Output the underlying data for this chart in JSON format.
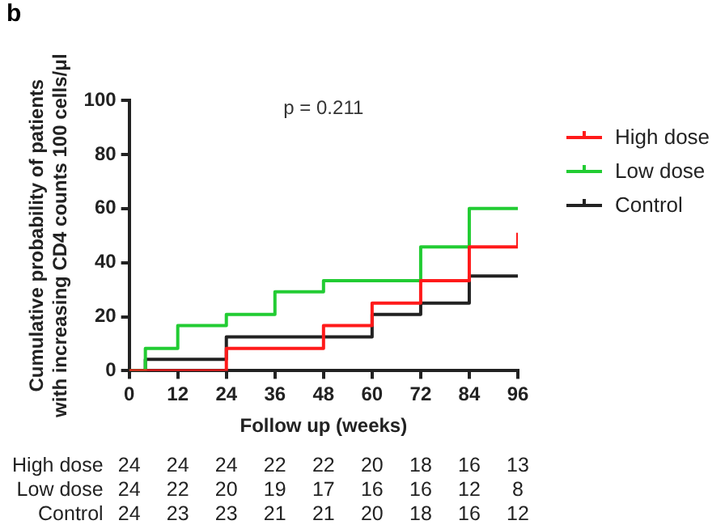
{
  "chart_data": {
    "type": "step",
    "title": "b",
    "xlabel": "Follow up (weeks)",
    "ylabel": "Cumulative probability of patients\nwith increasing CD4 counts 100 cells/μl",
    "xlim": [
      0,
      96
    ],
    "xticks": [
      0,
      12,
      24,
      36,
      48,
      60,
      72,
      84,
      96
    ],
    "ylim": [
      0,
      100
    ],
    "yticks": [
      0,
      20,
      40,
      60,
      80,
      100
    ],
    "grid": false,
    "legend": "top right",
    "series": [
      {
        "name": "High dose",
        "color": "#ff1a1a",
        "x": [
          0,
          24,
          48,
          60,
          72,
          84,
          96
        ],
        "values": [
          0,
          8.3,
          16.7,
          25,
          33.3,
          45.8,
          51
        ]
      },
      {
        "name": "Low dose",
        "color": "#22cc33",
        "x": [
          0,
          4,
          12,
          24,
          36,
          48,
          72,
          84,
          96
        ],
        "values": [
          0,
          8.3,
          16.7,
          20.8,
          29.2,
          33.3,
          45.8,
          60,
          60
        ]
      },
      {
        "name": "Control",
        "color": "#222222",
        "x": [
          0,
          4,
          24,
          60,
          72,
          84,
          96
        ],
        "values": [
          0,
          4.2,
          12.5,
          20.8,
          25,
          35,
          35
        ]
      }
    ],
    "annotations": [
      "p = 0.211",
      "High dose 24 24 24 22 22 20 18 16 13",
      "Low dose 24 22 20 19 17 16 16 12 8",
      "Control 24 23 23 21 21 20 18 16 12"
    ]
  }
}
